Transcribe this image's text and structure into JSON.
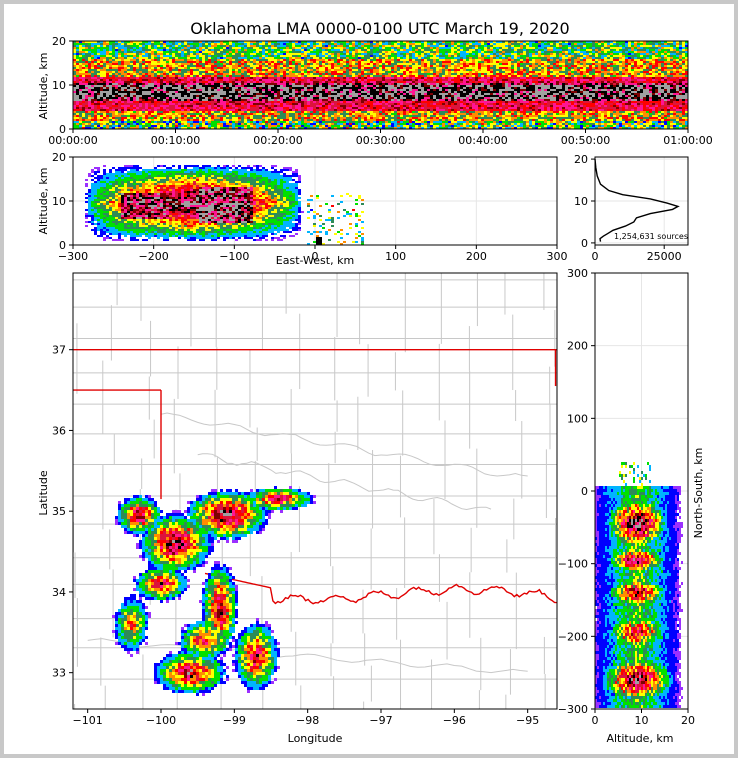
{
  "chart_data": {
    "type": "heatmap",
    "title": "Oklahoma LMA 0000-0100 UTC March 19, 2020",
    "colors": {
      "density_scale": [
        "#9b30ff",
        "#0000ff",
        "#00b4ff",
        "#00e000",
        "#2e8b57",
        "#ffff00",
        "#ff8c00",
        "#ff0000",
        "#dc143c",
        "#ff1493",
        "#7f0000",
        "#000000",
        "#a0a0a0"
      ],
      "state_border": "#e00000",
      "county_lines": "#c8c8c8"
    },
    "time_altitude": {
      "ylabel": "Altitude, km",
      "ylim": [
        0,
        20
      ],
      "yticks": [
        "0",
        "10",
        "20"
      ],
      "xticks": [
        "00:00:00",
        "00:10:00",
        "00:20:00",
        "00:30:00",
        "00:40:00",
        "00:50:00",
        "01:00:00"
      ]
    },
    "ew_altitude": {
      "xlabel": "East-West, km",
      "ylabel": "Altitude, km",
      "xlim": [
        -300,
        300
      ],
      "ylim": [
        0,
        20
      ],
      "xticks": [
        "−300",
        "−200",
        "−100",
        "0",
        "100",
        "200",
        "300"
      ],
      "yticks": [
        "0",
        "10",
        "20"
      ]
    },
    "altitude_histogram": {
      "annotation": "1,254,631 sources",
      "xticks": [
        "0",
        "25000"
      ],
      "yticks": [
        "0",
        "10",
        "20"
      ],
      "profile": [
        {
          "alt": 0.3,
          "count": 2000
        },
        {
          "alt": 1.0,
          "count": 1800
        },
        {
          "alt": 1.6,
          "count": 3000
        },
        {
          "alt": 2.2,
          "count": 4500
        },
        {
          "alt": 3.0,
          "count": 6500
        },
        {
          "alt": 4.0,
          "count": 11000
        },
        {
          "alt": 5.0,
          "count": 14000
        },
        {
          "alt": 6.0,
          "count": 15000
        },
        {
          "alt": 7.0,
          "count": 20000
        },
        {
          "alt": 8.0,
          "count": 28000
        },
        {
          "alt": 8.7,
          "count": 30000
        },
        {
          "alt": 9.5,
          "count": 26000
        },
        {
          "alt": 10.5,
          "count": 20000
        },
        {
          "alt": 11.5,
          "count": 10000
        },
        {
          "alt": 12.5,
          "count": 5000
        },
        {
          "alt": 14.0,
          "count": 2000
        },
        {
          "alt": 16.0,
          "count": 800
        },
        {
          "alt": 18.0,
          "count": 300
        },
        {
          "alt": 20.0,
          "count": 0
        }
      ]
    },
    "plan_view": {
      "xlabel": "Longitude",
      "ylabel": "Latitude",
      "xlim": [
        -101.2,
        -94.6
      ],
      "ylim": [
        32.55,
        37.95
      ],
      "xticks": [
        "−101",
        "−100",
        "−99",
        "−98",
        "−97",
        "−96",
        "−95"
      ],
      "yticks": [
        "33",
        "34",
        "35",
        "36",
        "37"
      ]
    },
    "ns_altitude": {
      "xlabel": "Altitude, km",
      "ylabel": "North-South, km",
      "xlim": [
        0,
        20
      ],
      "ylim": [
        -300,
        300
      ],
      "xticks": [
        "0",
        "10",
        "20"
      ],
      "yticks": [
        "−300",
        "−200",
        "−100",
        "0",
        "100",
        "200",
        "300"
      ]
    }
  }
}
